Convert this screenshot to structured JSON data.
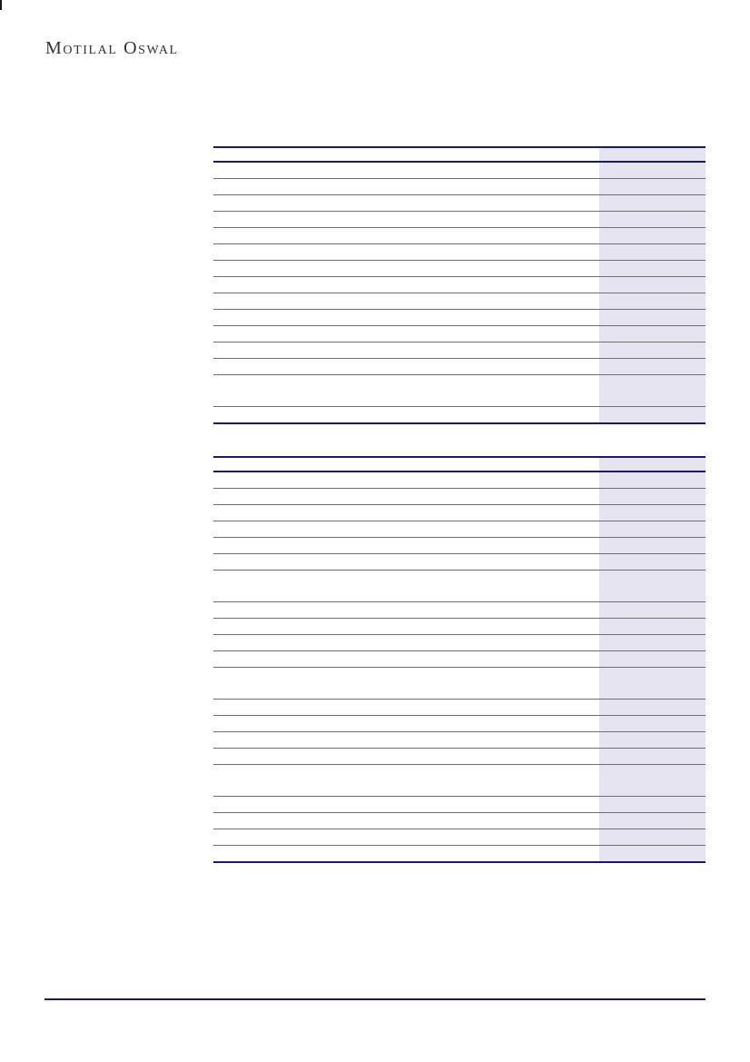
{
  "brand": {
    "logo_text": "Motilal Oswal"
  },
  "colors": {
    "accent_navy": "#1c1677",
    "row_rule_gray": "#707070",
    "shaded_column": "#e6e4f0",
    "logo_ink": "#37322e",
    "page_background": "#ffffff"
  },
  "tables": [
    {
      "name": "upper-financials-table",
      "has_header_rule": true,
      "shaded_right_column": true,
      "rows": [
        "normal",
        "normal",
        "normal",
        "normal",
        "normal",
        "normal",
        "normal",
        "normal",
        "normal",
        "normal",
        "normal",
        "normal",
        "normal",
        "double",
        "normal"
      ]
    },
    {
      "name": "lower-financials-table",
      "has_header_rule": true,
      "shaded_right_column": true,
      "rows": [
        "normal",
        "normal",
        "normal",
        "normal",
        "normal",
        "normal",
        "double",
        "normal",
        "normal",
        "normal",
        "normal",
        "double",
        "normal",
        "normal",
        "normal",
        "normal",
        "double",
        "normal",
        "normal",
        "normal",
        "normal"
      ]
    }
  ],
  "footer": {
    "divider": true
  }
}
